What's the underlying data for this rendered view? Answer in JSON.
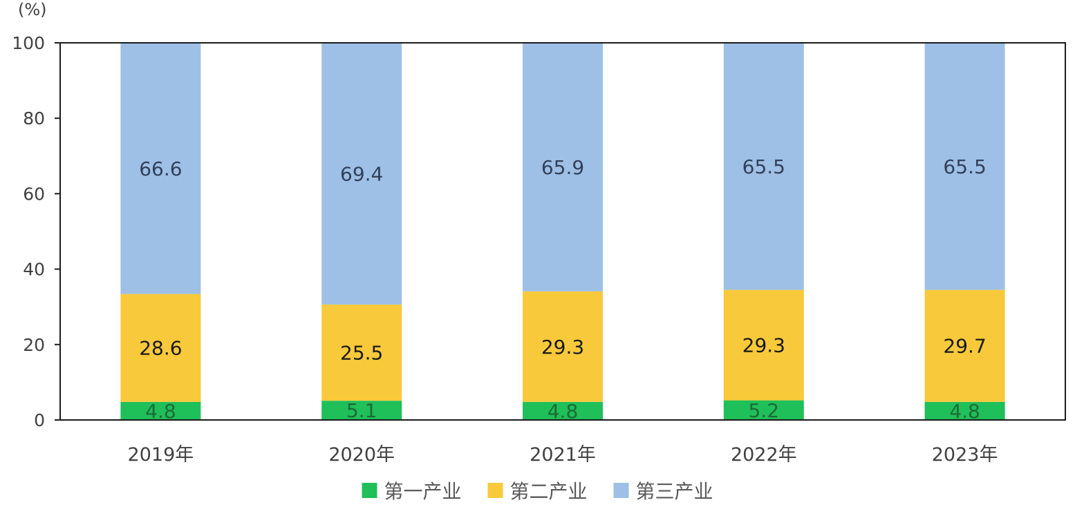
{
  "chart_data": {
    "type": "bar",
    "stacked": true,
    "unit_label": "(%)",
    "categories": [
      "2019年",
      "2020年",
      "2021年",
      "2022年",
      "2023年"
    ],
    "series": [
      {
        "name": "第一产业",
        "values": [
          4.8,
          5.1,
          4.8,
          5.2,
          4.8
        ],
        "labels": [
          "4.8",
          "5.1",
          "4.8",
          "5.2",
          "4.8"
        ],
        "color": "#1fbf5a",
        "label_color": "#1d6b35"
      },
      {
        "name": "第二产业",
        "values": [
          28.6,
          25.5,
          29.3,
          29.3,
          29.7
        ],
        "labels": [
          "28.6",
          "25.5",
          "29.3",
          "29.3",
          "29.7"
        ],
        "color": "#f8c93a",
        "label_color": "#1a1a1a"
      },
      {
        "name": "第三产业",
        "values": [
          66.6,
          69.4,
          65.9,
          65.5,
          65.5
        ],
        "labels": [
          "66.6",
          "69.4",
          "65.9",
          "65.5",
          "65.5"
        ],
        "color": "#9ec0e6",
        "label_color": "#33405a"
      }
    ],
    "ylim": [
      0,
      100
    ],
    "yticks": [
      "0",
      "20",
      "40",
      "60",
      "80",
      "100"
    ],
    "grid": false,
    "legend_position": "bottom"
  }
}
